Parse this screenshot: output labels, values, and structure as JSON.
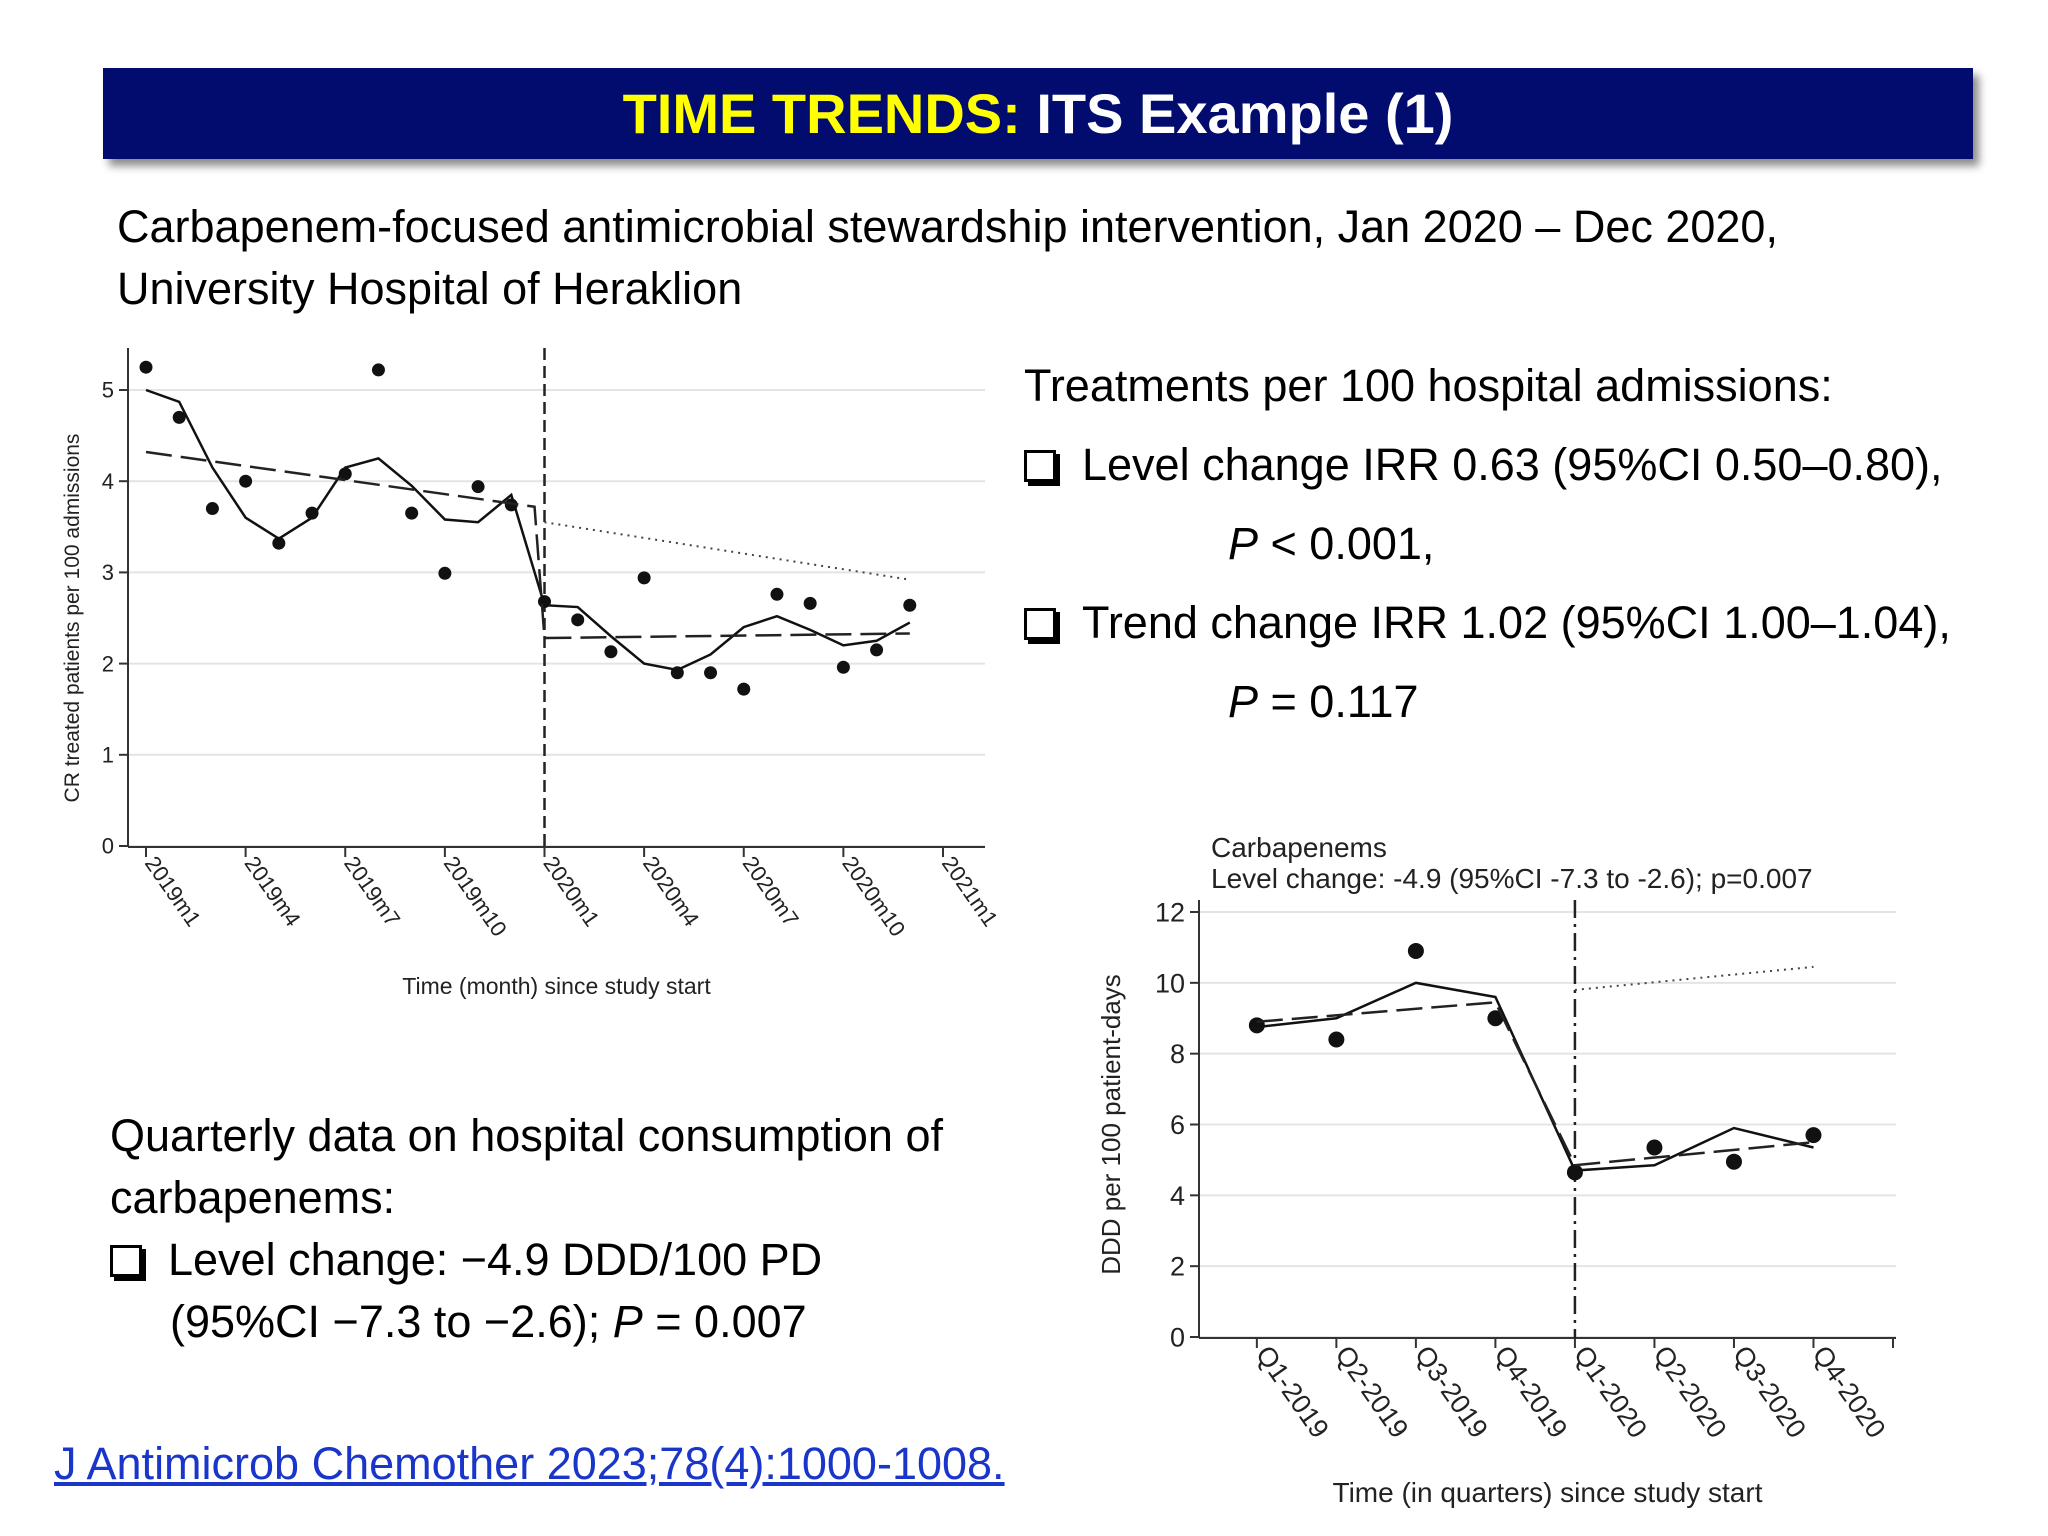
{
  "header": {
    "title_highlight": "TIME TRENDS:",
    "title_rest": "ITS Example (1)"
  },
  "subtitle": {
    "line1": "Carbapenem-focused antimicrobial stewardship intervention, Jan 2020 – Dec 2020,",
    "line2": "University Hospital of Heraklion"
  },
  "right_text": {
    "heading": "Treatments per 100 hospital admissions:",
    "level_line": "Level change IRR 0.63 (95%CI 0.50–0.80),",
    "level_p_italic": "P",
    "level_p_rest": " < 0.001,",
    "trend_line": "Trend change IRR 1.02 (95%CI 1.00–1.04),",
    "trend_p_italic": "P",
    "trend_p_rest": " = 0.117"
  },
  "bottom_text": {
    "line1": "Quarterly data on hospital consumption of",
    "line2": "carbapenems:",
    "line3": "Level change:  −4.9 DDD/100 PD",
    "line4_start": "(95%CI −7.3 to −2.6); ",
    "line4_italic": "P",
    "line4_end": " = 0.007"
  },
  "citation": "J Antimicrob Chemother 2023;78(4):1000-1008.",
  "chart_data": [
    {
      "type": "scatter",
      "xlabel": "Time (month) since study start",
      "ylabel": "CR treated patients per 100 admissions",
      "xlim": [
        0,
        24
      ],
      "ylim": [
        0,
        5
      ],
      "yticks": [
        0,
        1,
        2,
        3,
        4,
        5
      ],
      "xticks": [
        0,
        3,
        6,
        9,
        12,
        15,
        18,
        21,
        24
      ],
      "xticklabels": [
        "2019m1",
        "2019m4",
        "2019m7",
        "2019m10",
        "2020m1",
        "2020m4",
        "2020m7",
        "2020m10",
        "2021m1"
      ],
      "grid": true,
      "intervention_x": 12,
      "series": [
        {
          "style": "points",
          "x": [
            0,
            1,
            2,
            3,
            4,
            5,
            6,
            7,
            8,
            9,
            10,
            11,
            12,
            13,
            14,
            15,
            16,
            17,
            18,
            19,
            20,
            21,
            22,
            23
          ],
          "y": [
            5.25,
            4.7,
            3.7,
            4.0,
            3.32,
            3.65,
            4.08,
            5.22,
            3.65,
            2.99,
            3.94,
            3.74,
            2.68,
            2.48,
            2.13,
            2.94,
            1.9,
            1.9,
            1.72,
            2.76,
            2.66,
            1.96,
            2.15,
            2.64
          ]
        },
        {
          "style": "solid",
          "x": [
            0,
            1,
            2,
            3,
            4,
            5,
            6,
            7,
            8,
            9,
            10,
            11,
            12,
            13,
            14,
            15,
            16,
            17,
            18,
            19,
            20,
            21,
            22,
            23
          ],
          "y": [
            5.0,
            4.87,
            4.15,
            3.6,
            3.37,
            3.6,
            4.15,
            4.25,
            3.95,
            3.58,
            3.55,
            3.85,
            2.64,
            2.62,
            2.3,
            2.0,
            1.93,
            2.1,
            2.4,
            2.52,
            2.37,
            2.2,
            2.25,
            2.45
          ]
        },
        {
          "style": "dashed",
          "x": [
            0,
            11.7,
            12,
            23
          ],
          "y": [
            4.32,
            3.72,
            2.28,
            2.33
          ]
        },
        {
          "style": "dotted",
          "x": [
            12,
            23
          ],
          "y": [
            3.55,
            2.92
          ]
        }
      ]
    },
    {
      "type": "scatter",
      "title": "Carbapenems",
      "subtitle": "Level change: -4.9 (95%CI -7.3 to -2.6); p=0.007",
      "xlabel": "Time (in quarters) since study start",
      "ylabel": "DDD per 100 patient-days",
      "xlim": [
        -0.3,
        8
      ],
      "ylim": [
        0,
        12
      ],
      "yticks": [
        0,
        2,
        4,
        6,
        8,
        10,
        12
      ],
      "xticks": [
        0,
        1,
        2,
        3,
        4,
        5,
        6,
        7,
        8
      ],
      "xticklabels": [
        "Q1-2019",
        "Q2-2019",
        "Q3-2019",
        "Q4-2019",
        "Q1-2020",
        "Q2-2020",
        "Q3-2020",
        "Q4-2020",
        ""
      ],
      "grid": true,
      "intervention_x": 4,
      "series": [
        {
          "style": "points",
          "x": [
            0,
            1,
            2,
            3,
            4,
            5,
            6,
            7
          ],
          "y": [
            8.8,
            8.4,
            10.9,
            9.0,
            4.65,
            5.35,
            4.95,
            5.7
          ]
        },
        {
          "style": "solid",
          "x": [
            0,
            1,
            2,
            3,
            4,
            5,
            6,
            7
          ],
          "y": [
            8.75,
            9.0,
            10.0,
            9.6,
            4.7,
            4.85,
            5.9,
            5.35
          ]
        },
        {
          "style": "dashed",
          "x": [
            0,
            3,
            4,
            7
          ],
          "y": [
            8.9,
            9.45,
            4.85,
            5.5
          ]
        },
        {
          "style": "dotted",
          "x": [
            4,
            7
          ],
          "y": [
            9.8,
            10.45
          ]
        }
      ]
    }
  ]
}
